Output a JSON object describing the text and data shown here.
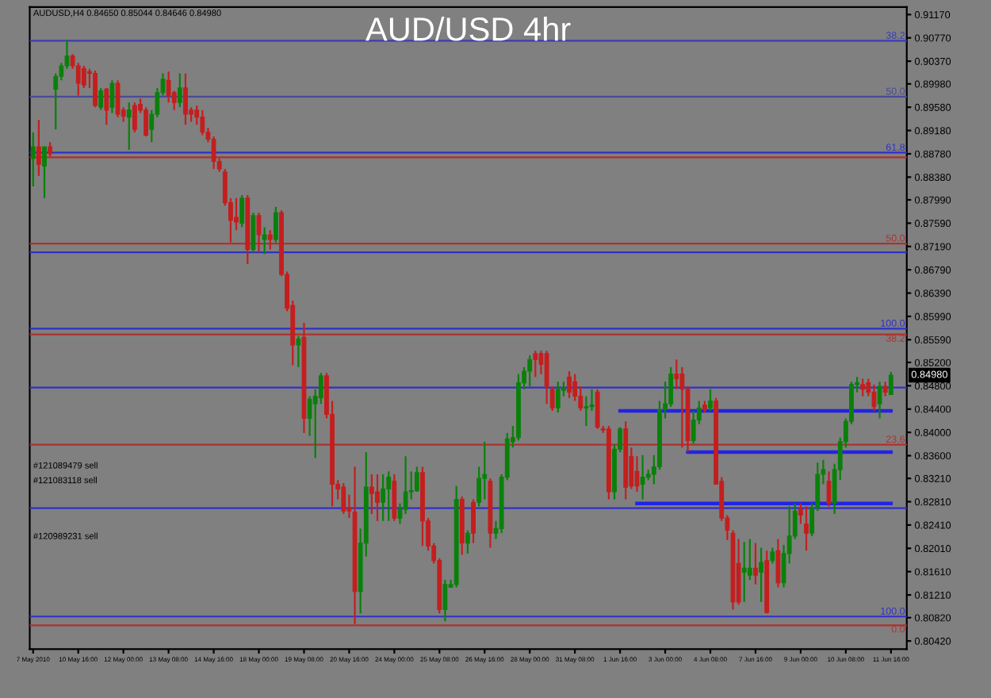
{
  "chart_data": {
    "type": "candlestick",
    "title": "AUD/USD 4hr",
    "categories": [
      "7 May 2010",
      null,
      null,
      null,
      null,
      null,
      null,
      null,
      "10 May 16:00",
      null,
      null,
      null,
      null,
      null,
      null,
      null,
      "12 May 00:00",
      null,
      null,
      null,
      null,
      null,
      null,
      null,
      "13 May 08:00",
      null,
      null,
      null,
      null,
      null,
      null,
      null,
      "14 May 16:00",
      null,
      null,
      null,
      null,
      null,
      null,
      null,
      "18 May 00:00",
      null,
      null,
      null,
      null,
      null,
      null,
      null,
      "19 May 08:00",
      null,
      null,
      null,
      null,
      null,
      null,
      null,
      "20 May 16:00",
      null,
      null,
      null,
      null,
      null,
      null,
      null,
      "24 May 00:00",
      null,
      null,
      null,
      null,
      null,
      null,
      null,
      "25 May 08:00",
      null,
      null,
      null,
      null,
      null,
      null,
      null,
      "26 May 16:00",
      null,
      null,
      null,
      null,
      null,
      null,
      null,
      "28 May 00:00",
      null,
      null,
      null,
      null,
      null,
      null,
      null,
      "31 May 08:00",
      null,
      null,
      null,
      null,
      null,
      null,
      null,
      "1 Jun 16:00",
      null,
      null,
      null,
      null,
      null,
      null,
      null,
      "3 Jun 00:00",
      null,
      null,
      null,
      null,
      null,
      null,
      null,
      "4 Jun 08:00",
      null,
      null,
      null,
      null,
      null,
      null,
      null,
      "7 Jun 16:00",
      null,
      null,
      null,
      null,
      null,
      null,
      null,
      "9 Jun 00:00",
      null,
      null,
      null,
      null,
      null,
      null,
      null,
      "10 Jun 08:00",
      null,
      null,
      null,
      null,
      null,
      null,
      null,
      "11 Jun 16:00"
    ],
    "ohlc": [
      [
        0.887,
        0.8915,
        0.8822,
        0.889
      ],
      [
        0.889,
        0.8936,
        0.884,
        0.886
      ],
      [
        0.8857,
        0.889,
        0.8802,
        0.889
      ],
      [
        0.889,
        0.8898,
        0.8873,
        0.8878
      ],
      [
        0.8989,
        0.9016,
        0.892,
        0.9011
      ],
      [
        0.9011,
        0.9034,
        0.9004,
        0.9029
      ],
      [
        0.9029,
        0.9074,
        0.9024,
        0.9046
      ],
      [
        0.9046,
        0.9049,
        0.9024,
        0.9029
      ],
      [
        0.9029,
        0.9034,
        0.8978,
        0.8999
      ],
      [
        0.9024,
        0.9029,
        0.8991,
        0.8996
      ],
      [
        0.9019,
        0.9024,
        0.8991,
        0.9016
      ],
      [
        0.9016,
        0.9021,
        0.8958,
        0.8961
      ],
      [
        0.8958,
        0.8991,
        0.8953,
        0.8986
      ],
      [
        0.8989,
        0.8991,
        0.8928,
        0.8953
      ],
      [
        0.8958,
        0.9004,
        0.8948,
        0.8999
      ],
      [
        0.8999,
        0.9004,
        0.8941,
        0.8946
      ],
      [
        0.8953,
        0.8958,
        0.8933,
        0.8943
      ],
      [
        0.8941,
        0.8966,
        0.8885,
        0.8953
      ],
      [
        0.8961,
        0.8966,
        0.8915,
        0.892
      ],
      [
        0.8963,
        0.8973,
        0.8948,
        0.8953
      ],
      [
        0.8953,
        0.8958,
        0.8908,
        0.891
      ],
      [
        0.892,
        0.8953,
        0.8898,
        0.8946
      ],
      [
        0.8946,
        0.8991,
        0.8941,
        0.8983
      ],
      [
        0.8983,
        0.9016,
        0.8978,
        0.9006
      ],
      [
        0.9004,
        0.9019,
        0.8966,
        0.8978
      ],
      [
        0.8983,
        0.8986,
        0.8953,
        0.8966
      ],
      [
        0.8966,
        0.9016,
        0.8958,
        0.8991
      ],
      [
        0.8991,
        0.9016,
        0.8928,
        0.8946
      ],
      [
        0.8953,
        0.8958,
        0.8933,
        0.8946
      ],
      [
        0.8953,
        0.8961,
        0.8928,
        0.8941
      ],
      [
        0.8941,
        0.8953,
        0.891,
        0.8915
      ],
      [
        0.8915,
        0.8923,
        0.8898,
        0.8903
      ],
      [
        0.8903,
        0.8908,
        0.8852,
        0.8865
      ],
      [
        0.8865,
        0.887,
        0.8847,
        0.8852
      ],
      [
        0.8847,
        0.8852,
        0.8789,
        0.8794
      ],
      [
        0.8794,
        0.8802,
        0.8726,
        0.8764
      ],
      [
        0.8769,
        0.8802,
        0.8747,
        0.8761
      ],
      [
        0.8759,
        0.8807,
        0.8752,
        0.8802
      ],
      [
        0.8802,
        0.8807,
        0.8689,
        0.8714
      ],
      [
        0.8714,
        0.8777,
        0.8709,
        0.8772
      ],
      [
        0.8772,
        0.8777,
        0.8709,
        0.8739
      ],
      [
        0.8731,
        0.8752,
        0.8706,
        0.8739
      ],
      [
        0.8739,
        0.8747,
        0.8714,
        0.8731
      ],
      [
        0.8731,
        0.8787,
        0.8726,
        0.8777
      ],
      [
        0.8777,
        0.8781,
        0.8668,
        0.8671
      ],
      [
        0.8671,
        0.8676,
        0.8608,
        0.8613
      ],
      [
        0.8618,
        0.8626,
        0.8515,
        0.855
      ],
      [
        0.855,
        0.8565,
        0.8512,
        0.856
      ],
      [
        0.8563,
        0.8588,
        0.8399,
        0.8424
      ],
      [
        0.8424,
        0.8462,
        0.8394,
        0.8457
      ],
      [
        0.8449,
        0.8474,
        0.8356,
        0.8462
      ],
      [
        0.8459,
        0.8502,
        0.8449,
        0.8497
      ],
      [
        0.8497,
        0.8502,
        0.8424,
        0.8431
      ],
      [
        0.8431,
        0.8454,
        0.8273,
        0.8311
      ],
      [
        0.8311,
        0.8318,
        0.8285,
        0.8303
      ],
      [
        0.8306,
        0.8313,
        0.826,
        0.8265
      ],
      [
        0.8271,
        0.8293,
        0.8253,
        0.8265
      ],
      [
        0.8263,
        0.8341,
        0.8071,
        0.8127
      ],
      [
        0.8127,
        0.8235,
        0.8089,
        0.821
      ],
      [
        0.821,
        0.8366,
        0.8187,
        0.8306
      ],
      [
        0.8306,
        0.8328,
        0.826,
        0.8295
      ],
      [
        0.8298,
        0.8328,
        0.8248,
        0.828
      ],
      [
        0.828,
        0.8328,
        0.8248,
        0.8303
      ],
      [
        0.8303,
        0.8333,
        0.8248,
        0.8323
      ],
      [
        0.8316,
        0.8328,
        0.8248,
        0.8253
      ],
      [
        0.8253,
        0.8278,
        0.8243,
        0.8268
      ],
      [
        0.8268,
        0.8359,
        0.826,
        0.8298
      ],
      [
        0.8298,
        0.8333,
        0.8285,
        0.83
      ],
      [
        0.83,
        0.8341,
        0.8298,
        0.8331
      ],
      [
        0.8331,
        0.8341,
        0.8205,
        0.8248
      ],
      [
        0.8248,
        0.8253,
        0.8197,
        0.8205
      ],
      [
        0.8205,
        0.821,
        0.8175,
        0.818
      ],
      [
        0.818,
        0.8184,
        0.8089,
        0.8096
      ],
      [
        0.8096,
        0.8147,
        0.8076,
        0.8139
      ],
      [
        0.8134,
        0.8147,
        0.8134,
        0.8139
      ],
      [
        0.8139,
        0.8308,
        0.8134,
        0.8285
      ],
      [
        0.8285,
        0.829,
        0.819,
        0.821
      ],
      [
        0.821,
        0.8232,
        0.8192,
        0.8227
      ],
      [
        0.828,
        0.8285,
        0.821,
        0.8227
      ],
      [
        0.828,
        0.8341,
        0.8273,
        0.8321
      ],
      [
        0.8321,
        0.8384,
        0.8285,
        0.8328
      ],
      [
        0.8316,
        0.8321,
        0.8202,
        0.8227
      ],
      [
        0.8227,
        0.8248,
        0.8217,
        0.8235
      ],
      [
        0.8235,
        0.8328,
        0.8227,
        0.8323
      ],
      [
        0.8323,
        0.8399,
        0.8318,
        0.8389
      ],
      [
        0.8384,
        0.8411,
        0.8374,
        0.8391
      ],
      [
        0.8391,
        0.85,
        0.8386,
        0.8485
      ],
      [
        0.8485,
        0.8512,
        0.8474,
        0.8505
      ],
      [
        0.8505,
        0.8532,
        0.8479,
        0.8525
      ],
      [
        0.8535,
        0.854,
        0.8495,
        0.8525
      ],
      [
        0.8535,
        0.854,
        0.85,
        0.8517
      ],
      [
        0.8535,
        0.854,
        0.8449,
        0.8479
      ],
      [
        0.8474,
        0.8479,
        0.8437,
        0.8442
      ],
      [
        0.8442,
        0.8487,
        0.8434,
        0.8474
      ],
      [
        0.8472,
        0.8487,
        0.8462,
        0.8477
      ],
      [
        0.8495,
        0.8505,
        0.8459,
        0.8469
      ],
      [
        0.8487,
        0.85,
        0.8454,
        0.8462
      ],
      [
        0.8462,
        0.8479,
        0.8437,
        0.8442
      ],
      [
        0.8442,
        0.8462,
        0.8411,
        0.8444
      ],
      [
        0.8444,
        0.8474,
        0.8437,
        0.8447
      ],
      [
        0.8469,
        0.8474,
        0.8406,
        0.8409
      ],
      [
        0.8406,
        0.8411,
        0.8399,
        0.8404
      ],
      [
        0.8406,
        0.8411,
        0.8285,
        0.8298
      ],
      [
        0.8298,
        0.8379,
        0.8285,
        0.8371
      ],
      [
        0.8371,
        0.8409,
        0.8366,
        0.8406
      ],
      [
        0.8406,
        0.8419,
        0.8285,
        0.8306
      ],
      [
        0.8359,
        0.8374,
        0.8303,
        0.8308
      ],
      [
        0.8333,
        0.8359,
        0.8298,
        0.8308
      ],
      [
        0.8311,
        0.8361,
        0.8285,
        0.8323
      ],
      [
        0.8323,
        0.8336,
        0.8318,
        0.8328
      ],
      [
        0.8328,
        0.8361,
        0.8311,
        0.8341
      ],
      [
        0.8341,
        0.8454,
        0.8336,
        0.8439
      ],
      [
        0.8439,
        0.8487,
        0.8424,
        0.8449
      ],
      [
        0.8449,
        0.8512,
        0.8444,
        0.85
      ],
      [
        0.85,
        0.8525,
        0.8474,
        0.8492
      ],
      [
        0.85,
        0.8512,
        0.8374,
        0.8474
      ],
      [
        0.8474,
        0.8479,
        0.8366,
        0.8386
      ],
      [
        0.8386,
        0.8437,
        0.8381,
        0.8421
      ],
      [
        0.8421,
        0.8454,
        0.8414,
        0.8442
      ],
      [
        0.8447,
        0.8454,
        0.8434,
        0.8439
      ],
      [
        0.8442,
        0.8474,
        0.8437,
        0.8454
      ],
      [
        0.8454,
        0.8459,
        0.8311,
        0.8311
      ],
      [
        0.8316,
        0.8323,
        0.8248,
        0.8253
      ],
      [
        0.8253,
        0.8258,
        0.8215,
        0.8232
      ],
      [
        0.8227,
        0.8232,
        0.8096,
        0.8109
      ],
      [
        0.8175,
        0.8217,
        0.8104,
        0.8109
      ],
      [
        0.816,
        0.8212,
        0.8109,
        0.8167
      ],
      [
        0.8155,
        0.8217,
        0.8147,
        0.8167
      ],
      [
        0.8167,
        0.821,
        0.8139,
        0.8155
      ],
      [
        0.816,
        0.8202,
        0.8109,
        0.8177
      ],
      [
        0.818,
        0.8197,
        0.8089,
        0.8091
      ],
      [
        0.818,
        0.8202,
        0.8175,
        0.8195
      ],
      [
        0.8197,
        0.8217,
        0.8134,
        0.8142
      ],
      [
        0.8142,
        0.8207,
        0.8134,
        0.8192
      ],
      [
        0.8192,
        0.8273,
        0.8175,
        0.8222
      ],
      [
        0.8222,
        0.8278,
        0.8217,
        0.8265
      ],
      [
        0.8268,
        0.8278,
        0.8243,
        0.8258
      ],
      [
        0.8243,
        0.8273,
        0.8197,
        0.8227
      ],
      [
        0.8227,
        0.8278,
        0.8222,
        0.8271
      ],
      [
        0.8271,
        0.8348,
        0.8265,
        0.8328
      ],
      [
        0.8328,
        0.8353,
        0.8311,
        0.8336
      ],
      [
        0.8316,
        0.8333,
        0.8273,
        0.8278
      ],
      [
        0.8278,
        0.8346,
        0.826,
        0.8336
      ],
      [
        0.8336,
        0.8391,
        0.8318,
        0.8384
      ],
      [
        0.8384,
        0.8424,
        0.8374,
        0.8419
      ],
      [
        0.8419,
        0.8487,
        0.8414,
        0.8482
      ],
      [
        0.8482,
        0.8495,
        0.8469,
        0.8485
      ],
      [
        0.8482,
        0.8492,
        0.8462,
        0.8474
      ],
      [
        0.8485,
        0.8492,
        0.8462,
        0.8469
      ],
      [
        0.8469,
        0.8482,
        0.8437,
        0.8444
      ],
      [
        0.8449,
        0.8487,
        0.8424,
        0.8479
      ],
      [
        0.8479,
        0.8487,
        0.8462,
        0.8469
      ],
      [
        0.8465,
        0.8504,
        0.8465,
        0.8498
      ]
    ],
    "colors": [
      "#0a800a",
      "#c41e1e",
      "#0a800a",
      "#c41e1e",
      "#0a800a",
      "#0a800a",
      "#0a800a",
      "#c41e1e",
      "#c41e1e",
      "#c41e1e",
      "#c41e1e",
      "#c41e1e",
      "#0a800a",
      "#c41e1e",
      "#0a800a",
      "#c41e1e",
      "#c41e1e",
      "#0a800a",
      "#c41e1e",
      "#c41e1e",
      "#c41e1e",
      "#0a800a",
      "#0a800a",
      "#0a800a",
      "#c41e1e",
      "#c41e1e",
      "#0a800a",
      "#c41e1e",
      "#c41e1e",
      "#c41e1e",
      "#c41e1e",
      "#c41e1e",
      "#c41e1e",
      "#c41e1e",
      "#c41e1e",
      "#c41e1e",
      "#c41e1e",
      "#0a800a",
      "#c41e1e",
      "#0a800a",
      "#c41e1e",
      "#0a800a",
      "#c41e1e",
      "#0a800a",
      "#c41e1e",
      "#c41e1e",
      "#c41e1e",
      "#0a800a",
      "#c41e1e",
      "#0a800a",
      "#0a800a",
      "#0a800a",
      "#c41e1e",
      "#c41e1e",
      "#c41e1e",
      "#c41e1e",
      "#c41e1e",
      "#c41e1e",
      "#0a800a",
      "#0a800a",
      "#c41e1e",
      "#c41e1e",
      "#0a800a",
      "#0a800a",
      "#c41e1e",
      "#0a800a",
      "#0a800a",
      "#0a800a",
      "#0a800a",
      "#c41e1e",
      "#c41e1e",
      "#c41e1e",
      "#c41e1e",
      "#0a800a",
      "#0a800a",
      "#0a800a",
      "#c41e1e",
      "#0a800a",
      "#c41e1e",
      "#0a800a",
      "#0a800a",
      "#c41e1e",
      "#0a800a",
      "#0a800a",
      "#0a800a",
      "#0a800a",
      "#0a800a",
      "#0a800a",
      "#0a800a",
      "#c41e1e",
      "#c41e1e",
      "#c41e1e",
      "#c41e1e",
      "#0a800a",
      "#0a800a",
      "#c41e1e",
      "#c41e1e",
      "#c41e1e",
      "#0a800a",
      "#0a800a",
      "#c41e1e",
      "#c41e1e",
      "#c41e1e",
      "#0a800a",
      "#0a800a",
      "#c41e1e",
      "#c41e1e",
      "#c41e1e",
      "#0a800a",
      "#0a800a",
      "#0a800a",
      "#0a800a",
      "#0a800a",
      "#0a800a",
      "#c41e1e",
      "#c41e1e",
      "#c41e1e",
      "#0a800a",
      "#0a800a",
      "#c41e1e",
      "#0a800a",
      "#c41e1e",
      "#c41e1e",
      "#c41e1e",
      "#c41e1e",
      "#c41e1e",
      "#0a800a",
      "#0a800a",
      "#c41e1e",
      "#0a800a",
      "#c41e1e",
      "#0a800a",
      "#c41e1e",
      "#0a800a",
      "#0a800a",
      "#0a800a",
      "#c41e1e",
      "#c41e1e",
      "#0a800a",
      "#0a800a",
      "#0a800a",
      "#c41e1e",
      "#0a800a",
      "#0a800a",
      "#0a800a",
      "#0a800a",
      "#0a800a",
      "#c41e1e",
      "#c41e1e",
      "#c41e1e",
      "#0a800a",
      "#c41e1e",
      "#0a800a"
    ],
    "series": [
      {
        "type": "line",
        "color": "#2323e6",
        "values": [
          null,
          null,
          null,
          null,
          null,
          null,
          null,
          null,
          null,
          null,
          null,
          null,
          null,
          null,
          null,
          null,
          null,
          null,
          null,
          null,
          null,
          null,
          null,
          null,
          null,
          null,
          null,
          null,
          null,
          null,
          null,
          null,
          null,
          null,
          null,
          null,
          null,
          null,
          null,
          null,
          null,
          null,
          null,
          null,
          null,
          null,
          null,
          null,
          null,
          null,
          null,
          null,
          null,
          null,
          null,
          null,
          null,
          null,
          null,
          null,
          null,
          null,
          null,
          null,
          null,
          null,
          null,
          null,
          null,
          null,
          null,
          null,
          null,
          null,
          null,
          null,
          null,
          null,
          null,
          null,
          null,
          null,
          null,
          null,
          null,
          null,
          null,
          null,
          null,
          null,
          null,
          null,
          null,
          null,
          null,
          null,
          null,
          null,
          null,
          null,
          null,
          null,
          null,
          null,
          0.8437,
          0.8437,
          0.8437,
          0.8437,
          0.8437,
          0.8437,
          0.8437,
          0.8437,
          0.8437,
          0.8437,
          0.8437,
          0.8437,
          0.8437,
          0.8437,
          0.8437,
          0.8437,
          0.8437,
          0.8437,
          0.8437,
          0.8437,
          0.8437,
          0.8437,
          0.8437,
          0.8437,
          0.8437,
          0.8437,
          0.8437,
          0.8437,
          0.8437,
          0.8437,
          0.8437,
          0.8437,
          0.8437,
          0.8437,
          0.8437,
          0.8437,
          0.8437,
          0.8437,
          0.8437,
          0.8437,
          0.8437,
          0.8437,
          0.8437,
          0.8437,
          0.8437,
          0.8437,
          0.8437,
          0.8437,
          0.8437
        ]
      },
      {
        "type": "line",
        "color": "#2323e6",
        "values": [
          null,
          null,
          null,
          null,
          null,
          null,
          null,
          null,
          null,
          null,
          null,
          null,
          null,
          null,
          null,
          null,
          null,
          null,
          null,
          null,
          null,
          null,
          null,
          null,
          null,
          null,
          null,
          null,
          null,
          null,
          null,
          null,
          null,
          null,
          null,
          null,
          null,
          null,
          null,
          null,
          null,
          null,
          null,
          null,
          null,
          null,
          null,
          null,
          null,
          null,
          null,
          null,
          null,
          null,
          null,
          null,
          null,
          null,
          null,
          null,
          null,
          null,
          null,
          null,
          null,
          null,
          null,
          null,
          null,
          null,
          null,
          null,
          null,
          null,
          null,
          null,
          null,
          null,
          null,
          null,
          null,
          null,
          null,
          null,
          null,
          null,
          null,
          null,
          null,
          null,
          null,
          null,
          null,
          null,
          null,
          null,
          null,
          null,
          null,
          null,
          null,
          null,
          null,
          null,
          null,
          null,
          null,
          null,
          null,
          null,
          null,
          null,
          null,
          null,
          null,
          null,
          0.8366,
          0.8366,
          0.8366,
          0.8366,
          0.8366,
          0.8366,
          0.8366,
          0.8366,
          0.8366,
          0.8366,
          0.8366,
          0.8366,
          0.8366,
          0.8366,
          0.8366,
          0.8366,
          0.8366,
          0.8366,
          0.8366,
          0.8366,
          0.8366,
          0.8366,
          0.8366,
          0.8366,
          0.8366,
          0.8366,
          0.8366,
          0.8366,
          0.8366,
          0.8366,
          0.8366,
          0.8366,
          0.8366,
          0.8366,
          0.8366,
          0.8366,
          0.8366
        ]
      },
      {
        "type": "line",
        "color": "#2323e6",
        "values": [
          null,
          null,
          null,
          null,
          null,
          null,
          null,
          null,
          null,
          null,
          null,
          null,
          null,
          null,
          null,
          null,
          null,
          null,
          null,
          null,
          null,
          null,
          null,
          null,
          null,
          null,
          null,
          null,
          null,
          null,
          null,
          null,
          null,
          null,
          null,
          null,
          null,
          null,
          null,
          null,
          null,
          null,
          null,
          null,
          null,
          null,
          null,
          null,
          null,
          null,
          null,
          null,
          null,
          null,
          null,
          null,
          null,
          null,
          null,
          null,
          null,
          null,
          null,
          null,
          null,
          null,
          null,
          null,
          null,
          null,
          null,
          null,
          null,
          null,
          null,
          null,
          null,
          null,
          null,
          null,
          null,
          null,
          null,
          null,
          null,
          null,
          null,
          null,
          null,
          null,
          null,
          null,
          null,
          null,
          null,
          null,
          null,
          null,
          null,
          null,
          null,
          null,
          null,
          null,
          null,
          null,
          null,
          0.8278,
          0.8278,
          0.8278,
          0.8278,
          0.8278,
          0.8278,
          0.8278,
          0.8278,
          0.8278,
          0.8278,
          0.8278,
          0.8278,
          0.8278,
          0.8278,
          0.8278,
          0.8278,
          0.8278,
          0.8278,
          0.8278,
          0.8278,
          0.8278,
          0.8278,
          0.8278,
          0.8278,
          0.8278,
          0.8278,
          0.8278,
          0.8278,
          0.8278,
          0.8278,
          0.8278,
          0.8278,
          0.8278,
          0.8278,
          0.8278,
          0.8278,
          0.8278,
          0.8278,
          0.8278,
          0.8278,
          0.8278,
          0.8278,
          0.8278,
          0.8278,
          0.8278,
          0.8278
        ]
      }
    ],
    "value_labels": [
      null,
      null,
      null,
      null,
      null,
      null,
      null,
      null,
      null,
      null,
      null,
      null,
      null,
      null,
      null,
      null,
      null,
      null,
      null,
      null,
      null,
      null,
      null,
      null,
      null,
      null,
      null,
      null,
      null,
      null,
      null,
      null,
      null,
      null,
      null,
      null,
      null,
      null,
      null,
      null,
      null,
      null,
      null,
      null,
      null,
      null,
      null,
      null,
      null,
      null,
      null,
      null,
      null,
      null,
      null,
      null,
      null,
      null,
      null,
      null,
      null,
      null,
      null,
      null,
      null,
      null,
      null,
      null,
      null,
      null,
      null,
      null,
      null,
      null,
      null,
      null,
      null,
      null,
      null,
      null,
      null,
      null,
      null,
      null,
      null,
      null,
      null,
      null,
      null,
      null,
      null,
      null,
      null,
      null,
      null,
      null,
      null,
      null,
      null,
      null,
      null,
      null,
      null,
      null,
      null,
      null,
      null,
      null,
      null,
      null,
      null,
      null,
      null,
      null,
      null,
      null,
      null,
      null,
      null,
      null,
      null,
      null,
      null,
      null,
      null,
      null,
      null,
      null,
      null,
      null,
      null,
      null,
      null,
      null,
      null,
      null,
      null,
      null,
      null,
      null,
      null,
      null,
      null,
      null,
      null,
      null,
      null,
      null,
      null,
      null,
      null,
      null,
      "0.84980"
    ],
    "ref_lines": [
      {
        "axis": "y",
        "value": 0.9072,
        "color": "#3c3cb4"
      },
      {
        "axis": "y",
        "value": 0.8976,
        "color": "#4a4a9a"
      },
      {
        "axis": "y",
        "value": 0.888,
        "color": "#3030c8"
      },
      {
        "axis": "y",
        "value": 0.8872,
        "color": "#b03030"
      },
      {
        "axis": "y",
        "value": 0.8724,
        "color": "#b03030"
      },
      {
        "axis": "y",
        "value": 0.8709,
        "color": "#3030c8"
      },
      {
        "axis": "y",
        "value": 0.8578,
        "color": "#3030c8"
      },
      {
        "axis": "y",
        "value": 0.8568,
        "color": "#b03030"
      },
      {
        "axis": "y",
        "value": 0.8477,
        "color": "#3030c8"
      },
      {
        "axis": "y",
        "value": 0.8379,
        "color": "#b03030"
      },
      {
        "axis": "y",
        "value": 0.827,
        "color": "#3030c8"
      },
      {
        "axis": "y",
        "value": 0.8084,
        "color": "#3030c8"
      },
      {
        "axis": "y",
        "value": 0.8069,
        "color": "#b03030"
      }
    ],
    "annotations": [
      "AUDUSD,H4 0.84650 0.85044 0.84646 0.84980",
      "#121089479 sell",
      "#121083118 sell",
      "#120989231 sell",
      {
        "text": "38.2",
        "y": 0.9072
      },
      {
        "text": "50.0",
        "y": 0.8976
      },
      {
        "text": "61.8",
        "y": 0.888
      },
      {
        "text": "50.0",
        "y": 0.8724
      },
      {
        "text": "100.0",
        "y": 0.8578
      },
      {
        "text": "38.2",
        "y": 0.8568
      },
      {
        "text": "23.6",
        "y": 0.8379
      },
      {
        "text": "100.0",
        "y": 0.8084
      },
      {
        "text": "0.0",
        "y": 0.8069
      }
    ],
    "ylim": [
      0.8028,
      0.913
    ],
    "yticks": [
      {
        "value": 0.9117,
        "label": "0.91170"
      },
      {
        "value": 0.9077,
        "label": "0.90770"
      },
      {
        "value": 0.9037,
        "label": "0.90370"
      },
      {
        "value": 0.8998,
        "label": "0.89980"
      },
      {
        "value": 0.8958,
        "label": "0.89580"
      },
      {
        "value": 0.8918,
        "label": "0.89180"
      },
      {
        "value": 0.8878,
        "label": "0.88780"
      },
      {
        "value": 0.8838,
        "label": "0.88380"
      },
      {
        "value": 0.8799,
        "label": "0.87990"
      },
      {
        "value": 0.8759,
        "label": "0.87590"
      },
      {
        "value": 0.8719,
        "label": "0.87190"
      },
      {
        "value": 0.8679,
        "label": "0.86790"
      },
      {
        "value": 0.8639,
        "label": "0.86390"
      },
      {
        "value": 0.8599,
        "label": "0.85990"
      },
      {
        "value": 0.8559,
        "label": "0.85590"
      },
      {
        "value": 0.852,
        "label": "0.85200"
      },
      {
        "value": 0.848,
        "label": "0.84800"
      },
      {
        "value": 0.844,
        "label": "0.84400"
      },
      {
        "value": 0.84,
        "label": "0.84000"
      },
      {
        "value": 0.836,
        "label": "0.83600"
      },
      {
        "value": 0.8321,
        "label": "0.83210"
      },
      {
        "value": 0.8281,
        "label": "0.82810"
      },
      {
        "value": 0.8241,
        "label": "0.82410"
      },
      {
        "value": 0.8201,
        "label": "0.82010"
      },
      {
        "value": 0.8161,
        "label": "0.81610"
      },
      {
        "value": 0.8121,
        "label": "0.81210"
      },
      {
        "value": 0.8082,
        "label": "0.80820"
      },
      {
        "value": 0.8042,
        "label": "0.80420"
      }
    ],
    "grid": false
  }
}
